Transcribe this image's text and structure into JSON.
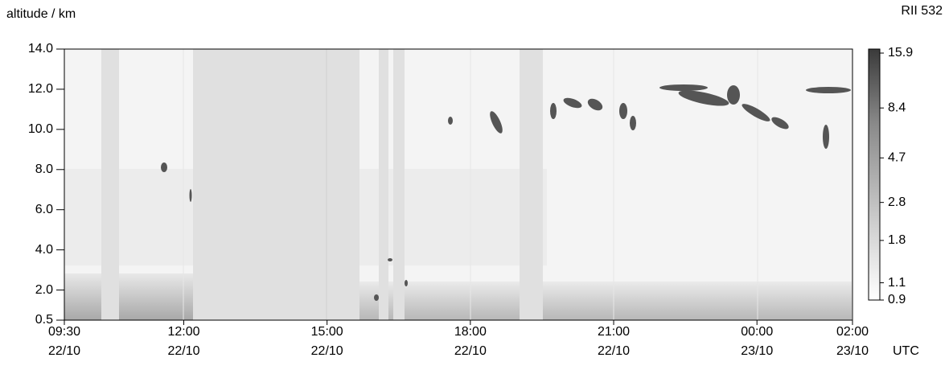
{
  "chart_data": {
    "type": "heatmap",
    "y_label": "altitude / km",
    "x_unit": "UTC",
    "colorbar_label": "RII  532",
    "ylim": [
      0.5,
      14
    ],
    "yticks": [
      0.5,
      {
        "value": 2,
        "label": "2.0"
      },
      {
        "value": 4,
        "label": "4.0"
      },
      {
        "value": 6,
        "label": "6.0"
      },
      {
        "value": 8,
        "label": "8.0"
      },
      {
        "value": 10,
        "label": "10.0"
      },
      {
        "value": 12,
        "label": "12.0"
      },
      {
        "value": 14,
        "label": "14.0"
      }
    ],
    "xticks": [
      {
        "time": "09:30",
        "date": "22/10"
      },
      {
        "time": "12:00",
        "date": "22/10"
      },
      {
        "time": "15:00",
        "date": "22/10"
      },
      {
        "time": "18:00",
        "date": "22/10"
      },
      {
        "time": "21:00",
        "date": "22/10"
      },
      {
        "time": "00:00",
        "date": "23/10"
      },
      {
        "time": "02:00",
        "date": "23/10"
      }
    ],
    "colorbar_scale": "log",
    "clim": [
      0.9,
      15.9
    ],
    "cticks": [
      15.9,
      8.4,
      4.7,
      2.8,
      1.8,
      1.1,
      0.9
    ]
  }
}
